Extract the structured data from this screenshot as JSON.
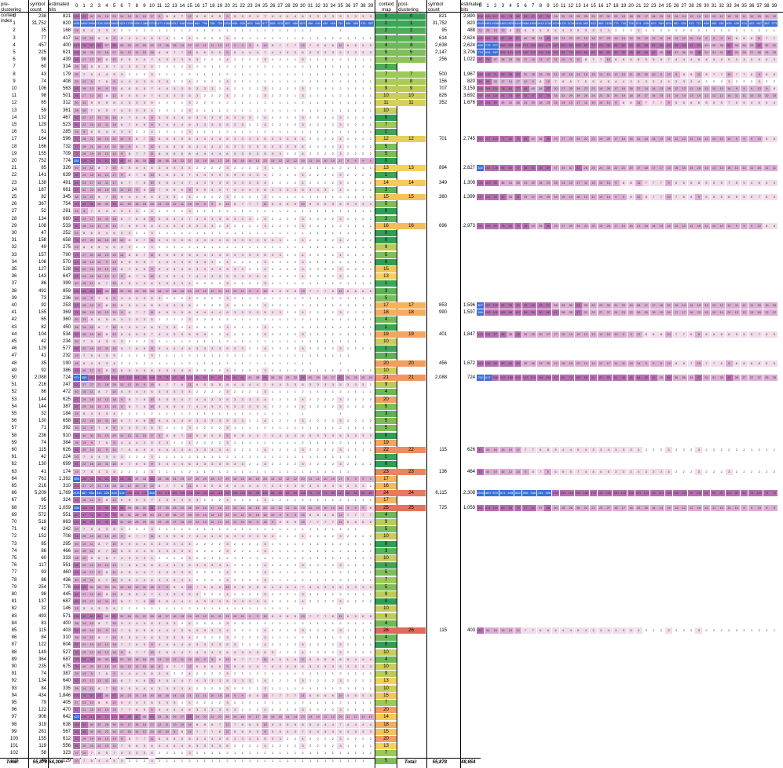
{
  "headers": {
    "pre_index": "pre-clustering context index",
    "symbol_count": "symbol count",
    "estimated_bits": "estimated bits",
    "context_map": "context map",
    "post_index": "post-clustering context index",
    "symbol_count2": "symbol count",
    "estimated_bits2": "estimated bits"
  },
  "symbol_columns": [
    "0",
    "1",
    "2",
    "3",
    "4",
    "5",
    "6",
    "7",
    "8",
    "9",
    "10",
    "11",
    "12",
    "13",
    "14",
    "15",
    "16",
    "17",
    "18",
    "19",
    "20",
    "21",
    "22",
    "23",
    "24",
    "25",
    "26",
    "27",
    "28",
    "29",
    "30",
    "31",
    "32",
    "33",
    "34",
    "35",
    "36",
    "37",
    "38",
    "39"
  ],
  "totals": {
    "label_left": "Total:",
    "symbol_count": "55,878",
    "estimated_bits": "54,306",
    "label_right": "Total:",
    "symbol_count2": "55,878",
    "estimated_bits2": "48,654"
  },
  "colors": {
    "heat_blue": "#3d6fd6",
    "heat_purple": "#b56fb0",
    "heat_light": "#f2dcea",
    "map_green": "#2e9e55",
    "map_yellow": "#f5d15a",
    "map_orange": "#f4a261",
    "map_red": "#e06a5e"
  },
  "pre_rows": [
    {
      "idx": "0",
      "count": "238",
      "bits": "821",
      "map": "0"
    },
    {
      "idx": "1",
      "count": "31,752",
      "bits": "820",
      "map": "1"
    },
    {
      "idx": "2",
      "count": "35",
      "bits": "168",
      "map": "2"
    },
    {
      "idx": "3",
      "count": "77",
      "bits": "417",
      "map": "3"
    },
    {
      "idx": "4",
      "count": "457",
      "bits": "400",
      "map": "4"
    },
    {
      "idx": "5",
      "count": "225",
      "bits": "621",
      "map": "5"
    },
    {
      "idx": "6",
      "count": "98",
      "bits": "439",
      "map": "6"
    },
    {
      "idx": "7",
      "count": "60",
      "bits": "314",
      "map": "2"
    },
    {
      "idx": "8",
      "count": "43",
      "bits": "179",
      "map": "7"
    },
    {
      "idx": "9",
      "count": "74",
      "bits": "408",
      "map": "8"
    },
    {
      "idx": "10",
      "count": "106",
      "bits": "563",
      "map": "9"
    },
    {
      "idx": "11",
      "count": "98",
      "bits": "501",
      "map": "10"
    },
    {
      "idx": "12",
      "count": "65",
      "bits": "312",
      "map": "11"
    },
    {
      "idx": "13",
      "count": "59",
      "bits": "361",
      "map": "10"
    },
    {
      "idx": "14",
      "count": "132",
      "bits": "467",
      "map": "0"
    },
    {
      "idx": "15",
      "count": "129",
      "bits": "523",
      "map": "7"
    },
    {
      "idx": "16",
      "count": "51",
      "bits": "285",
      "map": "1"
    },
    {
      "idx": "17",
      "count": "164",
      "bits": "596",
      "map": "12"
    },
    {
      "idx": "18",
      "count": "166",
      "bits": "732",
      "map": "5"
    },
    {
      "idx": "19",
      "count": "155",
      "bits": "709",
      "map": "5"
    },
    {
      "idx": "20",
      "count": "752",
      "bits": "774",
      "map": "0"
    },
    {
      "idx": "21",
      "count": "85",
      "bits": "326",
      "map": "13"
    },
    {
      "idx": "22",
      "count": "141",
      "bits": "639",
      "map": "1"
    },
    {
      "idx": "23",
      "count": "138",
      "bits": "491",
      "map": "14"
    },
    {
      "idx": "24",
      "count": "187",
      "bits": "681",
      "map": "3"
    },
    {
      "idx": "25",
      "count": "82",
      "bits": "345",
      "map": "15"
    },
    {
      "idx": "26",
      "count": "367",
      "bits": "754",
      "map": "5"
    },
    {
      "idx": "27",
      "count": "52",
      "bits": "291",
      "map": "0"
    },
    {
      "idx": "28",
      "count": "134",
      "bits": "680",
      "map": "3"
    },
    {
      "idx": "29",
      "count": "108",
      "bits": "533",
      "map": "16"
    },
    {
      "idx": "30",
      "count": "47",
      "bits": "252",
      "map": "0"
    },
    {
      "idx": "31",
      "count": "158",
      "bits": "658",
      "map": "0"
    },
    {
      "idx": "32",
      "count": "49",
      "bits": "275",
      "map": "9"
    },
    {
      "idx": "33",
      "count": "157",
      "bits": "790",
      "map": "5"
    },
    {
      "idx": "34",
      "count": "106",
      "bits": "570",
      "map": "0"
    },
    {
      "idx": "35",
      "count": "127",
      "bits": "528",
      "map": "15"
    },
    {
      "idx": "36",
      "count": "143",
      "bits": "647",
      "map": "13"
    },
    {
      "idx": "37",
      "count": "86",
      "bits": "399",
      "map": "1"
    },
    {
      "idx": "38",
      "count": "492",
      "bits": "859",
      "map": "3"
    },
    {
      "idx": "39",
      "count": "73",
      "bits": "236",
      "map": "5"
    },
    {
      "idx": "40",
      "count": "92",
      "bits": "253",
      "map": "17"
    },
    {
      "idx": "41",
      "count": "155",
      "bits": "369",
      "map": "18"
    },
    {
      "idx": "42",
      "count": "65",
      "bits": "360",
      "map": "4"
    },
    {
      "idx": "43",
      "count": "82",
      "bits": "450",
      "map": "1"
    },
    {
      "idx": "44",
      "count": "104",
      "bits": "534",
      "map": "19"
    },
    {
      "idx": "45",
      "count": "42",
      "bits": "234",
      "map": "10"
    },
    {
      "idx": "46",
      "count": "129",
      "bits": "577",
      "map": "1"
    },
    {
      "idx": "47",
      "count": "41",
      "bits": "232",
      "map": "3"
    },
    {
      "idx": "48",
      "count": "35",
      "bits": "190",
      "map": "20"
    },
    {
      "idx": "49",
      "count": "92",
      "bits": "386",
      "map": "10"
    },
    {
      "idx": "50",
      "count": "2,088",
      "bits": "724",
      "map": "21"
    },
    {
      "idx": "51",
      "count": "216",
      "bits": "247",
      "map": "9"
    },
    {
      "idx": "52",
      "count": "86",
      "bits": "472",
      "map": "4"
    },
    {
      "idx": "53",
      "count": "144",
      "bits": "625",
      "map": "20"
    },
    {
      "idx": "54",
      "count": "144",
      "bits": "387",
      "map": "5"
    },
    {
      "idx": "55",
      "count": "32",
      "bits": "184",
      "map": "3"
    },
    {
      "idx": "56",
      "count": "130",
      "bits": "658",
      "map": "5"
    },
    {
      "idx": "57",
      "count": "71",
      "bits": "392",
      "map": "5"
    },
    {
      "idx": "58",
      "count": "236",
      "bits": "910",
      "map": "0"
    },
    {
      "idx": "59",
      "count": "74",
      "bits": "384",
      "map": "19"
    },
    {
      "idx": "60",
      "count": "115",
      "bits": "626",
      "map": "22"
    },
    {
      "idx": "61",
      "count": "42",
      "bits": "224",
      "map": "1"
    },
    {
      "idx": "62",
      "count": "130",
      "bits": "699",
      "map": "0"
    },
    {
      "idx": "63",
      "count": "41",
      "bits": "174",
      "map": "23"
    },
    {
      "idx": "64",
      "count": "761",
      "bits": "1,392",
      "map": "17"
    },
    {
      "idx": "65",
      "count": "216",
      "bits": "310",
      "map": "16"
    },
    {
      "idx": "66",
      "count": "5,209",
      "bits": "1,769",
      "map": "24"
    },
    {
      "idx": "67",
      "count": "95",
      "bits": "324",
      "map": "17"
    },
    {
      "idx": "68",
      "count": "725",
      "bits": "1,059",
      "map": "25"
    },
    {
      "idx": "69",
      "count": "572",
      "bits": "551",
      "map": "4"
    },
    {
      "idx": "70",
      "count": "518",
      "bits": "883",
      "map": "9"
    },
    {
      "idx": "71",
      "count": "42",
      "bits": "242",
      "map": "5"
    },
    {
      "idx": "72",
      "count": "152",
      "bits": "708",
      "map": "10"
    },
    {
      "idx": "73",
      "count": "85",
      "bits": "295",
      "map": "0"
    },
    {
      "idx": "74",
      "count": "86",
      "bits": "466",
      "map": "3"
    },
    {
      "idx": "75",
      "count": "60",
      "bits": "333",
      "map": "10"
    },
    {
      "idx": "76",
      "count": "117",
      "bits": "551",
      "map": "1"
    },
    {
      "idx": "77",
      "count": "93",
      "bits": "460",
      "map": "5"
    },
    {
      "idx": "78",
      "count": "86",
      "bits": "436",
      "map": "7"
    },
    {
      "idx": "79",
      "count": "254",
      "bits": "776",
      "map": "5"
    },
    {
      "idx": "80",
      "count": "98",
      "bits": "445",
      "map": "9"
    },
    {
      "idx": "81",
      "count": "137",
      "bits": "687",
      "map": "0"
    },
    {
      "idx": "82",
      "count": "32",
      "bits": "146",
      "map": "10"
    },
    {
      "idx": "83",
      "count": "493",
      "bits": "571",
      "map": "9"
    },
    {
      "idx": "84",
      "count": "81",
      "bits": "400",
      "map": "4"
    },
    {
      "idx": "85",
      "count": "115",
      "bits": "403",
      "map": "26"
    },
    {
      "idx": "86",
      "count": "84",
      "bits": "310",
      "map": "4"
    },
    {
      "idx": "87",
      "count": "122",
      "bits": "604",
      "map": "0"
    },
    {
      "idx": "88",
      "count": "149",
      "bits": "527",
      "map": "10"
    },
    {
      "idx": "89",
      "count": "364",
      "bits": "687",
      "map": "4"
    },
    {
      "idx": "90",
      "count": "235",
      "bits": "675",
      "map": "10"
    },
    {
      "idx": "91",
      "count": "74",
      "bits": "387",
      "map": "9"
    },
    {
      "idx": "92",
      "count": "134",
      "bits": "640",
      "map": "13"
    },
    {
      "idx": "93",
      "count": "84",
      "bits": "335",
      "map": "10"
    },
    {
      "idx": "94",
      "count": "434",
      "bits": "1,846",
      "map": "15"
    },
    {
      "idx": "95",
      "count": "79",
      "bits": "405",
      "map": "7"
    },
    {
      "idx": "96",
      "count": "122",
      "bits": "470",
      "map": "20"
    },
    {
      "idx": "97",
      "count": "906",
      "bits": "642",
      "map": "14"
    },
    {
      "idx": "98",
      "count": "319",
      "bits": "638",
      "map": "18"
    },
    {
      "idx": "99",
      "count": "281",
      "bits": "567",
      "map": "15"
    },
    {
      "idx": "100",
      "count": "155",
      "bits": "612",
      "map": "20"
    },
    {
      "idx": "101",
      "count": "119",
      "bits": "556",
      "map": "13"
    },
    {
      "idx": "102",
      "count": "58",
      "bits": "323",
      "map": "7"
    },
    {
      "idx": "103",
      "count": "43",
      "bits": "129",
      "map": "5"
    }
  ],
  "post_rows": [
    {
      "row": 0,
      "idx": "0",
      "count": "821",
      "bits": "2,890"
    },
    {
      "row": 1,
      "idx": "1",
      "count": "31,752",
      "bits": "820"
    },
    {
      "row": 2,
      "idx": "2",
      "count": "95",
      "bits": "488"
    },
    {
      "row": 3,
      "idx": "3",
      "count": "614",
      "bits": "2,624"
    },
    {
      "row": 4,
      "idx": "4",
      "count": "2,638",
      "bits": "2,624"
    },
    {
      "row": 5,
      "idx": "5",
      "count": "2,147",
      "bits": "3,706"
    },
    {
      "row": 6,
      "idx": "6",
      "count": "256",
      "bits": "1,022"
    },
    {
      "row": 8,
      "idx": "7",
      "count": "500",
      "bits": "1,967"
    },
    {
      "row": 9,
      "idx": "8",
      "count": "156",
      "bits": "820"
    },
    {
      "row": 10,
      "idx": "9",
      "count": "707",
      "bits": "3,159"
    },
    {
      "row": 11,
      "idx": "10",
      "count": "826",
      "bits": "3,692"
    },
    {
      "row": 12,
      "idx": "11",
      "count": "352",
      "bits": "1,676"
    },
    {
      "row": 17,
      "idx": "12",
      "count": "701",
      "bits": "2,745"
    },
    {
      "row": 21,
      "idx": "13",
      "count": "894",
      "bits": "2,827"
    },
    {
      "row": 23,
      "idx": "14",
      "count": "349",
      "bits": "1,308"
    },
    {
      "row": 25,
      "idx": "15",
      "count": "380",
      "bits": "1,399"
    },
    {
      "row": 29,
      "idx": "16",
      "count": "696",
      "bits": "2,973"
    },
    {
      "row": 40,
      "idx": "17",
      "count": "853",
      "bits": "1,596"
    },
    {
      "row": 41,
      "idx": "18",
      "count": "990",
      "bits": "1,597"
    },
    {
      "row": 44,
      "idx": "19",
      "count": "401",
      "bits": "1,847"
    },
    {
      "row": 48,
      "idx": "20",
      "count": "456",
      "bits": "1,672"
    },
    {
      "row": 50,
      "idx": "21",
      "count": "2,088",
      "bits": "724"
    },
    {
      "row": 60,
      "idx": "22",
      "count": "115",
      "bits": "626"
    },
    {
      "row": 63,
      "idx": "23",
      "count": "136",
      "bits": "464"
    },
    {
      "row": 66,
      "idx": "24",
      "count": "6,115",
      "bits": "2,308"
    },
    {
      "row": 68,
      "idx": "25",
      "count": "725",
      "bits": "1,059"
    },
    {
      "row": 85,
      "idx": "26",
      "count": "115",
      "bits": "403"
    }
  ]
}
